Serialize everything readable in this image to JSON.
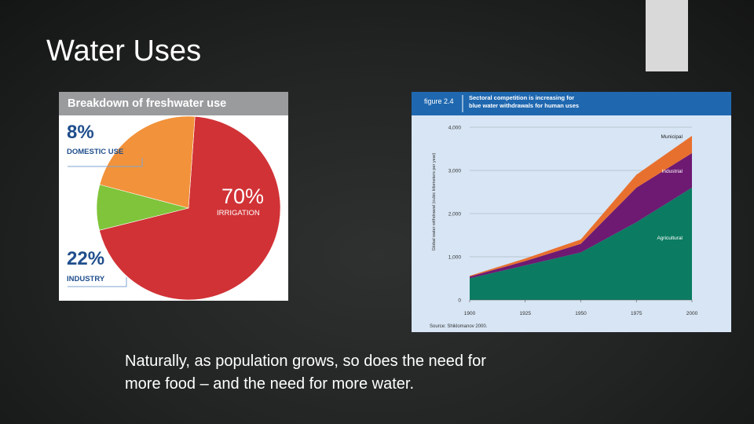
{
  "slide": {
    "title": "Water Uses",
    "caption_line1": "Naturally, as population grows, so does the need for",
    "caption_line2": "more food – and the need for more water."
  },
  "chart_data": [
    {
      "type": "pie",
      "title": "Breakdown of freshwater use",
      "slices": [
        {
          "label": "IRRIGATION",
          "value": 70,
          "display": "70%",
          "color": "#d13236"
        },
        {
          "label": "DOMESTIC USE",
          "value": 8,
          "display": "8%",
          "color": "#7fc43a"
        },
        {
          "label": "INDUSTRY",
          "value": 22,
          "display": "22%",
          "color": "#f2923a"
        }
      ]
    },
    {
      "type": "area",
      "figure_label": "figure 2.4",
      "title": "Sectoral competition is increasing for blue water withdrawals for human uses",
      "ylabel": "Global water withdrawal (cubic kilometers per year)",
      "source": "Source: Shiklomanov 2000.",
      "x": [
        1900,
        1925,
        1950,
        1975,
        2000
      ],
      "x_tick_labels": [
        "1900",
        "1925",
        "1950",
        "1975",
        "2000"
      ],
      "y_tick_labels": [
        "0",
        "1,000",
        "2,000",
        "3,000",
        "4,000"
      ],
      "ylim": [
        0,
        4000
      ],
      "stacked": true,
      "series": [
        {
          "name": "Agricultural",
          "values": [
            500,
            800,
            1100,
            1800,
            2600
          ],
          "color": "#0b7c62"
        },
        {
          "name": "Industrial",
          "values": [
            40,
            100,
            200,
            800,
            800
          ],
          "color": "#6e1a72"
        },
        {
          "name": "Municipal",
          "values": [
            20,
            60,
            100,
            300,
            400
          ],
          "color": "#e8702e"
        }
      ]
    }
  ]
}
